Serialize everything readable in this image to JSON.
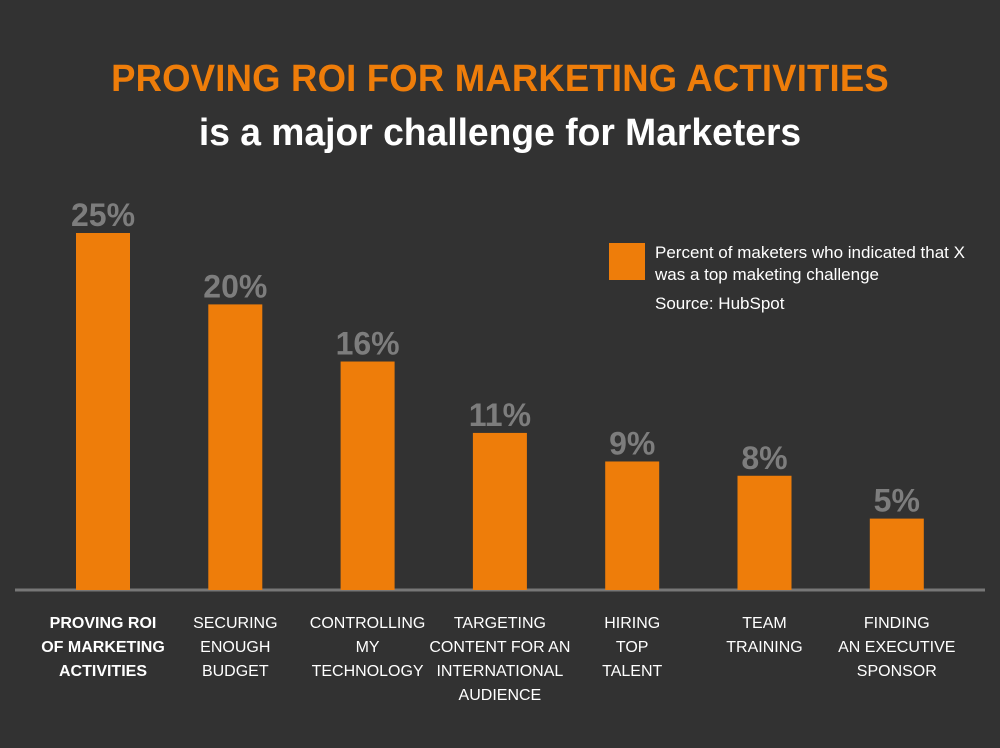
{
  "title_line1": "PROVING ROI FOR MARKETING ACTIVITIES",
  "title_line2": "is a major challenge for Marketers",
  "legend": {
    "text": "Percent of maketers who indicated that X was a top maketing challenge",
    "source": "Source: HubSpot"
  },
  "colors": {
    "background": "#323232",
    "bar": "#ee7d0a",
    "title_accent": "#ee7d0a",
    "value_label": "#7d7d7d",
    "baseline": "#777777",
    "text": "#ffffff"
  },
  "chart_data": {
    "type": "bar",
    "title": "PROVING ROI FOR MARKETING ACTIVITIES",
    "subtitle": "is a major challenge for Marketers",
    "categories": [
      "PROVING ROI OF MARKETING ACTIVITIES",
      "SECURING ENOUGH BUDGET",
      "CONTROLLING MY TECHNOLOGY",
      "TARGETING CONTENT FOR AN INTERNATIONAL AUDIENCE",
      "HIRING TOP TALENT",
      "TEAM TRAINING",
      "FINDING AN EXECUTIVE SPONSOR"
    ],
    "category_lines": [
      "PROVING ROI\nOF MARKETING\nACTIVITIES",
      "SECURING\nENOUGH\nBUDGET",
      "CONTROLLING\nMY\nTECHNOLOGY",
      "TARGETING\nCONTENT FOR AN\nINTERNATIONAL\nAUDIENCE",
      "HIRING\nTOP\nTALENT",
      "TEAM\nTRAINING",
      "FINDING\nAN EXECUTIVE\nSPONSOR"
    ],
    "values": [
      25,
      20,
      16,
      11,
      9,
      8,
      5
    ],
    "value_labels": [
      "25%",
      "20%",
      "16%",
      "11%",
      "9%",
      "8%",
      "5%"
    ],
    "series": [
      {
        "name": "Percent of maketers who indicated that X was a top maketing challenge",
        "values": [
          25,
          20,
          16,
          11,
          9,
          8,
          5
        ]
      }
    ],
    "xlabel": "",
    "ylabel": "",
    "ylim": [
      0,
      25
    ],
    "grid": false,
    "legend_position": "top-right",
    "highlighted_category": 0
  }
}
